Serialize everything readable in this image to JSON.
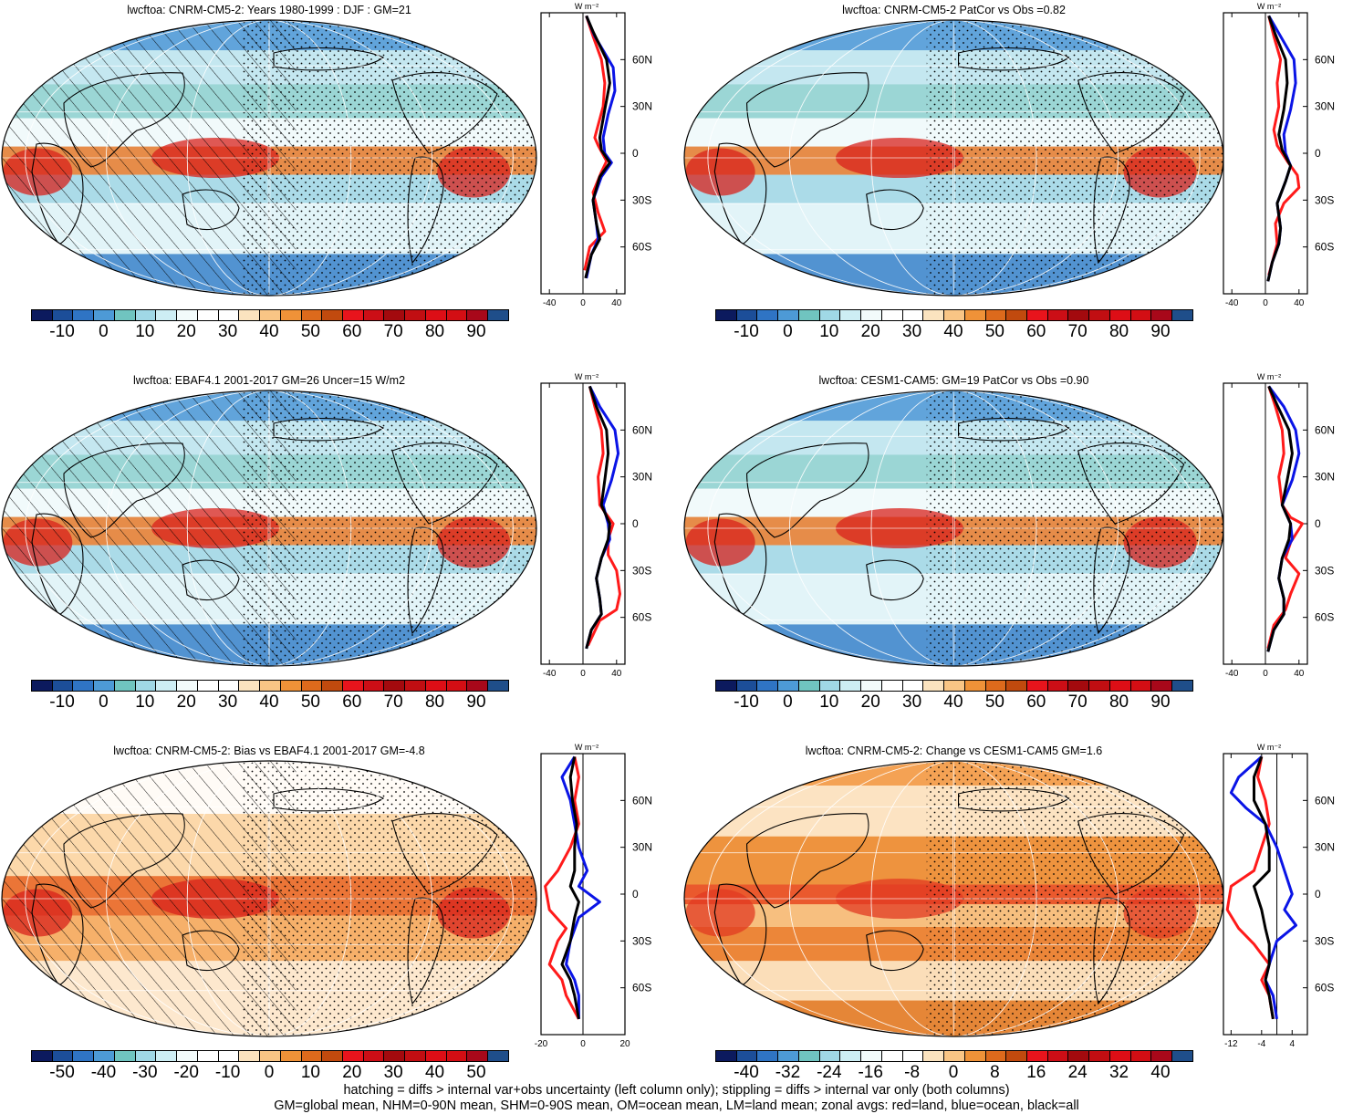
{
  "panels": [
    {
      "title": "lwcftoa: CNRM-CM5-2: Years 1980-1999 : DJF : GM=21",
      "cbar": "main",
      "hatching": true,
      "zonal_ticks": [
        "-40",
        "0",
        "40"
      ],
      "zonal_x_range": [
        -50,
        50
      ],
      "red": [
        [
          4,
          88
        ],
        [
          12,
          75
        ],
        [
          22,
          60
        ],
        [
          26,
          45
        ],
        [
          24,
          30
        ],
        [
          14,
          10
        ],
        [
          18,
          5
        ],
        [
          28,
          -5
        ],
        [
          22,
          -12
        ],
        [
          12,
          -25
        ],
        [
          18,
          -38
        ],
        [
          26,
          -50
        ],
        [
          8,
          -60
        ],
        [
          2,
          -75
        ]
      ],
      "blue": [
        [
          4,
          88
        ],
        [
          14,
          75
        ],
        [
          36,
          55
        ],
        [
          38,
          40
        ],
        [
          30,
          25
        ],
        [
          24,
          10
        ],
        [
          26,
          0
        ],
        [
          34,
          -6
        ],
        [
          22,
          -15
        ],
        [
          12,
          -30
        ],
        [
          16,
          -45
        ],
        [
          18,
          -55
        ],
        [
          10,
          -65
        ],
        [
          4,
          -80
        ]
      ],
      "black": [
        [
          4,
          88
        ],
        [
          12,
          78
        ],
        [
          28,
          60
        ],
        [
          32,
          45
        ],
        [
          26,
          28
        ],
        [
          20,
          10
        ],
        [
          22,
          2
        ],
        [
          32,
          -6
        ],
        [
          20,
          -15
        ],
        [
          12,
          -30
        ],
        [
          16,
          -45
        ],
        [
          20,
          -55
        ],
        [
          10,
          -65
        ],
        [
          3,
          -80
        ]
      ]
    },
    {
      "title": "lwcftoa: CNRM-CM5-2 PatCor vs Obs =0.82",
      "cbar": "main",
      "hatching": false,
      "zonal_ticks": [
        "-40",
        "0",
        "40"
      ],
      "zonal_x_range": [
        -50,
        50
      ],
      "red": [
        [
          4,
          88
        ],
        [
          10,
          75
        ],
        [
          18,
          60
        ],
        [
          14,
          45
        ],
        [
          16,
          30
        ],
        [
          10,
          15
        ],
        [
          14,
          5
        ],
        [
          26,
          -5
        ],
        [
          38,
          -14
        ],
        [
          40,
          -22
        ],
        [
          22,
          -32
        ],
        [
          12,
          -45
        ],
        [
          14,
          -58
        ],
        [
          4,
          -78
        ]
      ],
      "blue": [
        [
          4,
          88
        ],
        [
          18,
          75
        ],
        [
          34,
          60
        ],
        [
          36,
          45
        ],
        [
          30,
          28
        ],
        [
          22,
          12
        ],
        [
          24,
          0
        ],
        [
          30,
          -8
        ],
        [
          24,
          -18
        ],
        [
          14,
          -32
        ],
        [
          18,
          -48
        ],
        [
          16,
          -58
        ],
        [
          8,
          -70
        ],
        [
          3,
          -82
        ]
      ],
      "black": [
        [
          4,
          88
        ],
        [
          12,
          76
        ],
        [
          24,
          60
        ],
        [
          26,
          45
        ],
        [
          22,
          28
        ],
        [
          16,
          12
        ],
        [
          20,
          2
        ],
        [
          30,
          -8
        ],
        [
          24,
          -18
        ],
        [
          14,
          -32
        ],
        [
          18,
          -48
        ],
        [
          16,
          -58
        ],
        [
          8,
          -70
        ],
        [
          3,
          -82
        ]
      ]
    },
    {
      "title": "lwcftoa: EBAF4.1 2001-2017 GM=26 Uncer=15 W/m2",
      "cbar": "main",
      "hatching": true,
      "zonal_ticks": [
        "-40",
        "0",
        "40"
      ],
      "zonal_x_range": [
        -50,
        50
      ],
      "red": [
        [
          8,
          88
        ],
        [
          14,
          75
        ],
        [
          22,
          60
        ],
        [
          24,
          45
        ],
        [
          18,
          30
        ],
        [
          20,
          12
        ],
        [
          36,
          0
        ],
        [
          30,
          -10
        ],
        [
          30,
          -20
        ],
        [
          40,
          -30
        ],
        [
          44,
          -45
        ],
        [
          40,
          -55
        ],
        [
          20,
          -62
        ],
        [
          6,
          -78
        ]
      ],
      "blue": [
        [
          8,
          88
        ],
        [
          20,
          75
        ],
        [
          38,
          60
        ],
        [
          42,
          45
        ],
        [
          34,
          28
        ],
        [
          24,
          12
        ],
        [
          30,
          0
        ],
        [
          32,
          -10
        ],
        [
          22,
          -22
        ],
        [
          16,
          -35
        ],
        [
          20,
          -48
        ],
        [
          22,
          -58
        ],
        [
          10,
          -68
        ],
        [
          4,
          -80
        ]
      ],
      "black": [
        [
          8,
          88
        ],
        [
          16,
          75
        ],
        [
          28,
          60
        ],
        [
          30,
          45
        ],
        [
          26,
          28
        ],
        [
          22,
          12
        ],
        [
          32,
          0
        ],
        [
          30,
          -10
        ],
        [
          22,
          -22
        ],
        [
          16,
          -35
        ],
        [
          20,
          -48
        ],
        [
          22,
          -58
        ],
        [
          10,
          -68
        ],
        [
          4,
          -80
        ]
      ]
    },
    {
      "title": "lwcftoa: CESM1-CAM5: GM=19 PatCor vs Obs =0.90",
      "cbar": "main",
      "hatching": false,
      "zonal_ticks": [
        "-40",
        "0",
        "40"
      ],
      "zonal_x_range": [
        -50,
        50
      ],
      "red": [
        [
          4,
          88
        ],
        [
          12,
          75
        ],
        [
          20,
          60
        ],
        [
          22,
          45
        ],
        [
          16,
          30
        ],
        [
          20,
          12
        ],
        [
          30,
          4
        ],
        [
          44,
          0
        ],
        [
          30,
          -12
        ],
        [
          24,
          -22
        ],
        [
          40,
          -32
        ],
        [
          30,
          -45
        ],
        [
          24,
          -55
        ],
        [
          10,
          -65
        ],
        [
          3,
          -80
        ]
      ],
      "blue": [
        [
          4,
          88
        ],
        [
          22,
          75
        ],
        [
          36,
          60
        ],
        [
          40,
          45
        ],
        [
          32,
          28
        ],
        [
          20,
          12
        ],
        [
          30,
          0
        ],
        [
          32,
          -10
        ],
        [
          20,
          -22
        ],
        [
          16,
          -35
        ],
        [
          22,
          -48
        ],
        [
          22,
          -58
        ],
        [
          10,
          -68
        ],
        [
          3,
          -82
        ]
      ],
      "black": [
        [
          4,
          88
        ],
        [
          14,
          76
        ],
        [
          28,
          60
        ],
        [
          32,
          45
        ],
        [
          26,
          28
        ],
        [
          20,
          12
        ],
        [
          30,
          0
        ],
        [
          28,
          -10
        ],
        [
          20,
          -22
        ],
        [
          16,
          -35
        ],
        [
          22,
          -48
        ],
        [
          22,
          -58
        ],
        [
          10,
          -68
        ],
        [
          3,
          -82
        ]
      ]
    },
    {
      "title": "lwcftoa: CNRM-CM5-2: Bias vs EBAF4.1 2001-2017 GM=-4.8",
      "cbar": "bias",
      "hatching": true,
      "zonal_ticks": [
        "-20",
        "0",
        "20"
      ],
      "zonal_x_range": [
        -20,
        20
      ],
      "red": [
        [
          -4,
          88
        ],
        [
          -2,
          75
        ],
        [
          -4,
          60
        ],
        [
          -2,
          45
        ],
        [
          -6,
          30
        ],
        [
          -12,
          15
        ],
        [
          -18,
          5
        ],
        [
          -16,
          -10
        ],
        [
          -8,
          -22
        ],
        [
          -12,
          -30
        ],
        [
          -16,
          -45
        ],
        [
          -10,
          -55
        ],
        [
          -8,
          -65
        ],
        [
          -2,
          -80
        ]
      ],
      "blue": [
        [
          -4,
          88
        ],
        [
          -10,
          75
        ],
        [
          -6,
          60
        ],
        [
          -4,
          45
        ],
        [
          -2,
          30
        ],
        [
          2,
          15
        ],
        [
          -2,
          5
        ],
        [
          8,
          -5
        ],
        [
          -2,
          -15
        ],
        [
          -6,
          -30
        ],
        [
          -8,
          -45
        ],
        [
          -4,
          -55
        ],
        [
          -2,
          -65
        ],
        [
          -2,
          -80
        ]
      ],
      "black": [
        [
          -4,
          88
        ],
        [
          -6,
          75
        ],
        [
          -5,
          60
        ],
        [
          -3,
          45
        ],
        [
          -4,
          30
        ],
        [
          -4,
          15
        ],
        [
          -6,
          5
        ],
        [
          -2,
          -5
        ],
        [
          -4,
          -15
        ],
        [
          -6,
          -30
        ],
        [
          -10,
          -45
        ],
        [
          -6,
          -55
        ],
        [
          -4,
          -65
        ],
        [
          -2,
          -80
        ]
      ]
    },
    {
      "title": "lwcftoa: CNRM-CM5-2: Change vs CESM1-CAM5 GM=1.6",
      "cbar": "change",
      "hatching": false,
      "zonal_ticks": [
        "-12",
        "-4",
        "4"
      ],
      "zonal_x_range": [
        -14,
        8
      ],
      "red": [
        [
          -4,
          88
        ],
        [
          -5,
          75
        ],
        [
          -3,
          60
        ],
        [
          -2,
          45
        ],
        [
          -4,
          30
        ],
        [
          -6,
          15
        ],
        [
          -12,
          5
        ],
        [
          -13,
          -10
        ],
        [
          -10,
          -22
        ],
        [
          -6,
          -32
        ],
        [
          -2,
          -45
        ],
        [
          -4,
          -55
        ],
        [
          -2,
          -65
        ],
        [
          -1,
          -80
        ]
      ],
      "blue": [
        [
          -4,
          88
        ],
        [
          -10,
          75
        ],
        [
          -12,
          65
        ],
        [
          -8,
          55
        ],
        [
          -3,
          45
        ],
        [
          0,
          30
        ],
        [
          2,
          15
        ],
        [
          4,
          0
        ],
        [
          2,
          -10
        ],
        [
          5,
          -20
        ],
        [
          0,
          -30
        ],
        [
          -2,
          -45
        ],
        [
          -3,
          -55
        ],
        [
          -1,
          -65
        ],
        [
          0,
          -80
        ]
      ],
      "black": [
        [
          -4,
          88
        ],
        [
          -6,
          75
        ],
        [
          -6,
          60
        ],
        [
          -3,
          45
        ],
        [
          -2,
          30
        ],
        [
          -2,
          15
        ],
        [
          -6,
          5
        ],
        [
          -4,
          -10
        ],
        [
          -3,
          -22
        ],
        [
          -2,
          -32
        ],
        [
          -2,
          -45
        ],
        [
          -3,
          -55
        ],
        [
          -2,
          -65
        ],
        [
          -1,
          -80
        ]
      ]
    }
  ],
  "zonal_lat_ticks": [
    "60N",
    "30N",
    "0",
    "30S",
    "60S"
  ],
  "zonal_unit": "W m⁻²",
  "colorbars": {
    "main": {
      "labels": [
        "-10",
        "0",
        "10",
        "20",
        "30",
        "40",
        "50",
        "60",
        "70",
        "80",
        "90"
      ],
      "colors": [
        "#0c1a5e",
        "#1c4e99",
        "#2f74c4",
        "#4d9ad6",
        "#70c4c0",
        "#a0d8e6",
        "#cdeef4",
        "#f2fbfb",
        "#ffffff",
        "#ffffff",
        "#fbe3bf",
        "#f9c585",
        "#ef9238",
        "#dd6a1c",
        "#c14a0e",
        "#e8141c",
        "#cc0e16",
        "#a30a0e",
        "#c10e12",
        "#dd0e16",
        "#d30e14",
        "#a8081a",
        "#1f4e8a"
      ]
    },
    "bias": {
      "labels": [
        "-50",
        "-40",
        "-30",
        "-20",
        "-10",
        "0",
        "10",
        "20",
        "30",
        "40",
        "50"
      ],
      "colors": [
        "#0c1a5e",
        "#1c4e99",
        "#2f74c4",
        "#4d9ad6",
        "#70c4c0",
        "#a0d8e6",
        "#cdeef4",
        "#f2fbfb",
        "#ffffff",
        "#ffffff",
        "#fbe3bf",
        "#f9c585",
        "#ef9238",
        "#dd6a1c",
        "#c14a0e",
        "#e8141c",
        "#cc0e16",
        "#a30a0e",
        "#c10e12",
        "#dd0e16",
        "#d30e14",
        "#a8081a",
        "#1f4e8a"
      ]
    },
    "change": {
      "labels": [
        "-40",
        "-32",
        "-24",
        "-16",
        "-8",
        "0",
        "8",
        "16",
        "24",
        "32",
        "40"
      ],
      "colors": [
        "#0c1a5e",
        "#1c4e99",
        "#2f74c4",
        "#4d9ad6",
        "#70c4c0",
        "#a0d8e6",
        "#cdeef4",
        "#f2fbfb",
        "#ffffff",
        "#ffffff",
        "#fbe3bf",
        "#f9c585",
        "#ef9238",
        "#dd6a1c",
        "#c14a0e",
        "#e8141c",
        "#cc0e16",
        "#a30a0e",
        "#c10e12",
        "#dd0e16",
        "#d30e14",
        "#a8081a",
        "#1f4e8a"
      ]
    }
  },
  "colors": {
    "land": "#ff1a1a",
    "ocean": "#0a14e6",
    "all": "#000000"
  },
  "footer": {
    "line1": "hatching = diffs > internal var+obs uncertainty (left column only); stippling = diffs > internal var only (both columns)",
    "line2": "GM=global mean, NHM=0-90N mean, SHM=0-90S mean, OM=ocean mean, LM=land mean; zonal avgs: red=land, blue=ocean, black=all"
  }
}
